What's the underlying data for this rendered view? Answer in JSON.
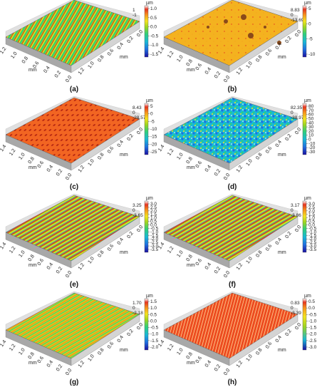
{
  "panels": [
    {
      "letter": "(a)",
      "unit": "µm",
      "annotations": [
        "1",
        "-1"
      ],
      "colorbar_ticks": [
        "1.0",
        "0.5",
        "0.0",
        "-0.5",
        "-1.0",
        "-1.5"
      ],
      "x_ticks": [
        "1.2",
        "1.0",
        "0.8",
        "0.6",
        "0.4",
        "0.2",
        "0.0"
      ],
      "y_ticks": [
        "1.2",
        "1.0",
        "0.8",
        "0.6",
        "0.4",
        "0.2",
        "0.0"
      ],
      "x_unit": "mm",
      "y_unit": "mm"
    },
    {
      "letter": "(b)",
      "unit": "µm",
      "annotations": [
        "8.83",
        "0",
        "-13.69"
      ],
      "colorbar_ticks": [
        "5",
        "0",
        "-5",
        "-10"
      ],
      "x_ticks": [
        "1.4",
        "1.2",
        "1.0",
        "0.8",
        "0.6",
        "0.4",
        "0.2",
        "0.0"
      ],
      "y_ticks": [
        "1.2",
        "1.0",
        "0.8",
        "0.6",
        "0.4",
        "0.2",
        "0.0"
      ],
      "x_unit": "mm",
      "y_unit": "mm"
    },
    {
      "letter": "(c)",
      "unit": "µm",
      "annotations": [
        "8.43",
        "0",
        "-28.57"
      ],
      "colorbar_ticks": [
        "5",
        "0",
        "-5",
        "-10",
        "-15",
        "-20",
        "-25"
      ],
      "x_ticks": [
        "1.4",
        "1.2",
        "1.0",
        "0.8",
        "0.6",
        "0.4",
        "0.2",
        "0.0"
      ],
      "y_ticks": [
        "1.2",
        "1.0",
        "0.8",
        "0.6",
        "0.4",
        "0.2",
        "0.0"
      ],
      "x_unit": "mm",
      "y_unit": "mm"
    },
    {
      "letter": "(d)",
      "unit": "µm",
      "annotations": [
        "82.35",
        "0",
        "-38.97"
      ],
      "colorbar_ticks": [
        "80",
        "70",
        "60",
        "50",
        "40",
        "30",
        "20",
        "10",
        "0",
        "-10",
        "-20",
        "-30"
      ],
      "x_ticks": [
        "1.4",
        "1.2",
        "1.0",
        "0.8",
        "0.6",
        "0.4",
        "0.2",
        "0.0"
      ],
      "y_ticks": [
        "1.2",
        "1.0",
        "0.8",
        "0.6",
        "0.4",
        "0.2",
        "0.0"
      ],
      "x_unit": "mm",
      "y_unit": "mm"
    },
    {
      "letter": "(e)",
      "unit": "µm",
      "annotations": [
        "3.25",
        "0",
        "-3.65"
      ],
      "colorbar_ticks": [
        "3.0",
        "2.5",
        "2.0",
        "1.5",
        "1.0",
        "0.5",
        "0.0",
        "-0.5",
        "-1.0",
        "-1.5",
        "-2.0",
        "-2.5",
        "-3.0",
        "-3.5"
      ],
      "x_ticks": [
        "1.4",
        "1.2",
        "1.0",
        "0.8",
        "0.6",
        "0.4",
        "0.2",
        "0.0"
      ],
      "y_ticks": [
        "1.2",
        "1.0",
        "0.8",
        "0.6",
        "0.4",
        "0.2",
        "0.0"
      ],
      "x_unit": "mm",
      "y_unit": "mm"
    },
    {
      "letter": "(f)",
      "unit": "µm",
      "annotations": [
        "3.17",
        "0",
        "-3.86"
      ],
      "colorbar_ticks": [
        "3.0",
        "2.5",
        "2.0",
        "1.5",
        "1.0",
        "0.5",
        "0.0",
        "-0.5",
        "-1.0",
        "-1.5",
        "-2.0",
        "-2.5",
        "-3.0",
        "-3.5"
      ],
      "x_ticks": [
        "1.4",
        "1.2",
        "1.0",
        "0.8",
        "0.6",
        "0.4",
        "0.2",
        "0.0"
      ],
      "y_ticks": [
        "1.2",
        "1.0",
        "0.8",
        "0.6",
        "0.4",
        "0.2",
        "0.0"
      ],
      "x_unit": "mm",
      "y_unit": "mm"
    },
    {
      "letter": "(g)",
      "unit": "µm",
      "annotations": [
        "1.70",
        "0",
        "-2.18"
      ],
      "colorbar_ticks": [
        "1.5",
        "1.0",
        "0.5",
        "0.0",
        "-0.5",
        "-1.0",
        "-1.5",
        "-2.0"
      ],
      "x_ticks": [
        "1.4",
        "1.2",
        "1.0",
        "0.8",
        "0.6",
        "0.4",
        "0.2",
        "0.0"
      ],
      "y_ticks": [
        "1.2",
        "1.0",
        "0.8",
        "0.6",
        "0.4",
        "0.2",
        "0.0"
      ],
      "x_unit": "mm",
      "y_unit": "mm"
    },
    {
      "letter": "(h)",
      "unit": "µm",
      "annotations": [
        "0.83",
        "0",
        "-3.39"
      ],
      "colorbar_ticks": [
        "0.5",
        "0.0",
        "-0.5",
        "-1.0",
        "-1.5",
        "-2.0",
        "-2.5",
        "-3.0"
      ],
      "x_ticks": [
        "1.4",
        "1.2",
        "1.0",
        "0.8",
        "0.6",
        "0.4",
        "0.2",
        "0.0"
      ],
      "y_ticks": [
        "1.2",
        "1.0",
        "0.8",
        "0.6",
        "0.4",
        "0.2",
        "0.0"
      ],
      "x_unit": "mm",
      "y_unit": "mm"
    }
  ],
  "colors": {
    "colormap": [
      "#1a0fa0",
      "#1f6fe0",
      "#18b9d6",
      "#2fd07a",
      "#9ad521",
      "#f4e41f",
      "#f7941d",
      "#e6331f",
      "#ffffff"
    ],
    "frame": "#d4d4d4",
    "frame_shade": "#a8a8a8"
  }
}
